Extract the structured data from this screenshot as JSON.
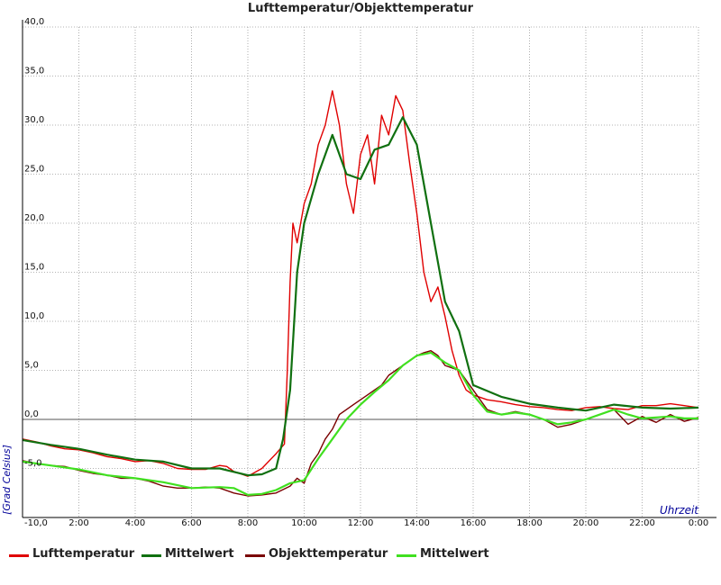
{
  "chart_data": {
    "type": "line",
    "title": "Lufttemperatur/Objekttemperatur",
    "xlabel": "Uhrzeit",
    "ylabel": "[Grad Celsius]",
    "xlim": [
      0,
      24
    ],
    "ylim": [
      -10,
      40
    ],
    "x_tick_labels": [
      "-10,0",
      "2:00",
      "4:00",
      "6:00",
      "8:00",
      "10:00",
      "12:00",
      "14:00",
      "16:00",
      "18:00",
      "20:00",
      "22:00",
      "0:00"
    ],
    "y_tick_labels": [
      "40,0",
      "35,0",
      "30,0",
      "25,0",
      "20,0",
      "15,0",
      "10,0",
      "5,0",
      "0,0",
      "-5,0"
    ],
    "grid": true,
    "legend_position": "bottom",
    "series": [
      {
        "name": "Lufttemperatur",
        "color": "#e00000",
        "x": [
          0,
          0.5,
          1,
          1.5,
          2,
          2.5,
          3,
          3.5,
          4,
          4.5,
          5,
          5.5,
          6,
          6.5,
          7,
          7.25,
          7.5,
          8,
          8.5,
          9,
          9.3,
          9.4,
          9.5,
          9.6,
          9.75,
          10,
          10.25,
          10.5,
          10.75,
          11,
          11.25,
          11.5,
          11.75,
          12,
          12.25,
          12.5,
          12.75,
          13,
          13.25,
          13.5,
          13.75,
          14,
          14.25,
          14.5,
          14.75,
          15,
          15.25,
          15.5,
          15.75,
          16,
          16.5,
          17,
          17.5,
          18,
          18.5,
          19,
          19.5,
          20,
          20.5,
          21,
          21.5,
          22,
          22.5,
          23,
          23.5,
          24
        ],
        "y": [
          -2.0,
          -2.3,
          -2.7,
          -3.0,
          -3.1,
          -3.4,
          -3.8,
          -4.0,
          -4.3,
          -4.2,
          -4.5,
          -5.0,
          -5.1,
          -5.1,
          -4.7,
          -4.8,
          -5.3,
          -5.8,
          -5.0,
          -3.5,
          -2.5,
          5.0,
          14.0,
          20.0,
          18.0,
          22.0,
          24.0,
          28.0,
          30.0,
          33.5,
          30.0,
          24.0,
          21.0,
          27.0,
          29.0,
          24.0,
          31.0,
          29.0,
          33.0,
          31.5,
          26.0,
          21.0,
          15.0,
          12.0,
          13.5,
          10.5,
          7.0,
          4.5,
          3.0,
          2.5,
          2.0,
          1.8,
          1.5,
          1.3,
          1.2,
          1.0,
          0.9,
          1.2,
          1.3,
          1.1,
          1.0,
          1.4,
          1.4,
          1.6,
          1.4,
          1.2
        ]
      },
      {
        "name": "Mittelwert",
        "color": "#107010",
        "x": [
          0,
          1,
          2,
          3,
          4,
          5,
          6,
          7,
          8,
          8.5,
          9,
          9.25,
          9.5,
          9.75,
          10,
          10.5,
          11,
          11.5,
          12,
          12.5,
          13,
          13.5,
          14,
          14.5,
          15,
          15.5,
          16,
          17,
          18,
          19,
          20,
          21,
          22,
          23,
          24
        ],
        "y": [
          -2.1,
          -2.6,
          -3.0,
          -3.6,
          -4.1,
          -4.3,
          -5.0,
          -5.0,
          -5.7,
          -5.6,
          -5.0,
          -2.0,
          3.0,
          15.0,
          20.0,
          25.0,
          29.0,
          25.0,
          24.5,
          27.5,
          28.0,
          30.8,
          28.0,
          20.0,
          12.0,
          9.0,
          3.5,
          2.3,
          1.6,
          1.2,
          0.9,
          1.5,
          1.2,
          1.1,
          1.2
        ]
      },
      {
        "name": "Objekttemperatur",
        "color": "#7a0000",
        "x": [
          0,
          0.5,
          1,
          1.5,
          2,
          2.5,
          3,
          3.5,
          4,
          4.5,
          5,
          5.5,
          6,
          6.5,
          7,
          7.5,
          8,
          8.5,
          9,
          9.5,
          9.75,
          10,
          10.25,
          10.5,
          10.75,
          11,
          11.25,
          11.5,
          11.75,
          12,
          12.25,
          12.5,
          12.75,
          13,
          13.25,
          13.5,
          13.75,
          14,
          14.25,
          14.5,
          14.75,
          15,
          15.5,
          16,
          16.5,
          17,
          17.5,
          18,
          18.5,
          19,
          19.5,
          20,
          20.5,
          21,
          21.5,
          22,
          22.5,
          23,
          23.5,
          24
        ],
        "y": [
          -4.2,
          -4.5,
          -4.7,
          -4.8,
          -5.2,
          -5.5,
          -5.7,
          -6.0,
          -6.0,
          -6.3,
          -6.8,
          -7.0,
          -7.0,
          -6.9,
          -7.0,
          -7.5,
          -7.8,
          -7.7,
          -7.5,
          -6.8,
          -6.0,
          -6.5,
          -4.5,
          -3.5,
          -2.0,
          -1.0,
          0.5,
          1.0,
          1.5,
          2.0,
          2.5,
          3.0,
          3.5,
          4.5,
          5.0,
          5.5,
          6.0,
          6.5,
          6.8,
          7.0,
          6.5,
          5.5,
          5.0,
          3.0,
          1.0,
          0.5,
          0.8,
          0.5,
          0.0,
          -0.8,
          -0.5,
          0.0,
          0.5,
          1.0,
          -0.5,
          0.3,
          -0.3,
          0.5,
          -0.2,
          0.2
        ]
      },
      {
        "name": "Mittelwert",
        "color": "#40e020",
        "x": [
          0,
          1,
          2,
          3,
          4,
          5,
          6,
          7,
          7.5,
          8,
          8.5,
          9,
          9.5,
          10,
          10.5,
          11,
          11.5,
          12,
          12.5,
          13,
          13.5,
          14,
          14.5,
          15,
          15.5,
          16,
          16.5,
          17,
          17.5,
          18,
          18.5,
          19,
          19.5,
          20,
          20.5,
          21,
          21.5,
          22,
          22.5,
          23,
          23.5,
          24
        ],
        "y": [
          -4.3,
          -4.7,
          -5.1,
          -5.7,
          -6.0,
          -6.4,
          -7.0,
          -6.9,
          -7.0,
          -7.7,
          -7.6,
          -7.2,
          -6.5,
          -6.2,
          -4.0,
          -2.0,
          0.0,
          1.5,
          2.8,
          4.0,
          5.5,
          6.5,
          6.8,
          5.8,
          5.0,
          2.5,
          0.8,
          0.5,
          0.7,
          0.5,
          0.0,
          -0.5,
          -0.3,
          0.0,
          0.5,
          1.0,
          0.5,
          0.1,
          0.2,
          0.3,
          0.1,
          0.1
        ]
      }
    ]
  }
}
